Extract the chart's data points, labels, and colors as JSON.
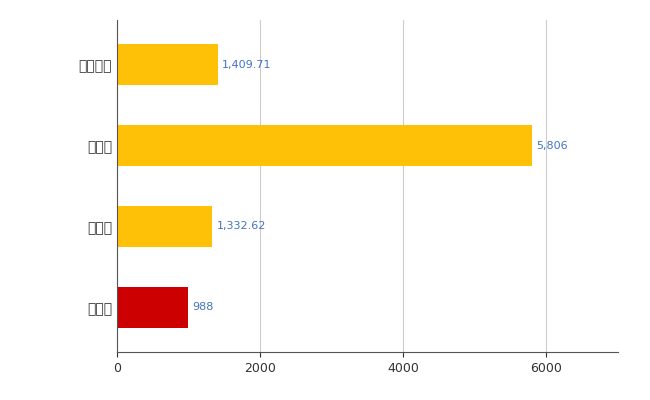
{
  "categories": [
    "全国平均",
    "県最大",
    "県平均",
    "志摩市"
  ],
  "values": [
    1409.71,
    5806,
    1332.62,
    988
  ],
  "bar_colors": [
    "#FFC107",
    "#FFC107",
    "#FFC107",
    "#CC0000"
  ],
  "labels": [
    "1,409.71",
    "5,806",
    "1,332.62",
    "988"
  ],
  "xlim": [
    0,
    7000
  ],
  "background_color": "#ffffff",
  "grid_color": "#cccccc",
  "label_color": "#4472C4",
  "bar_height": 0.5,
  "tick_labels": [
    "0",
    "2000",
    "4000",
    "6000"
  ]
}
